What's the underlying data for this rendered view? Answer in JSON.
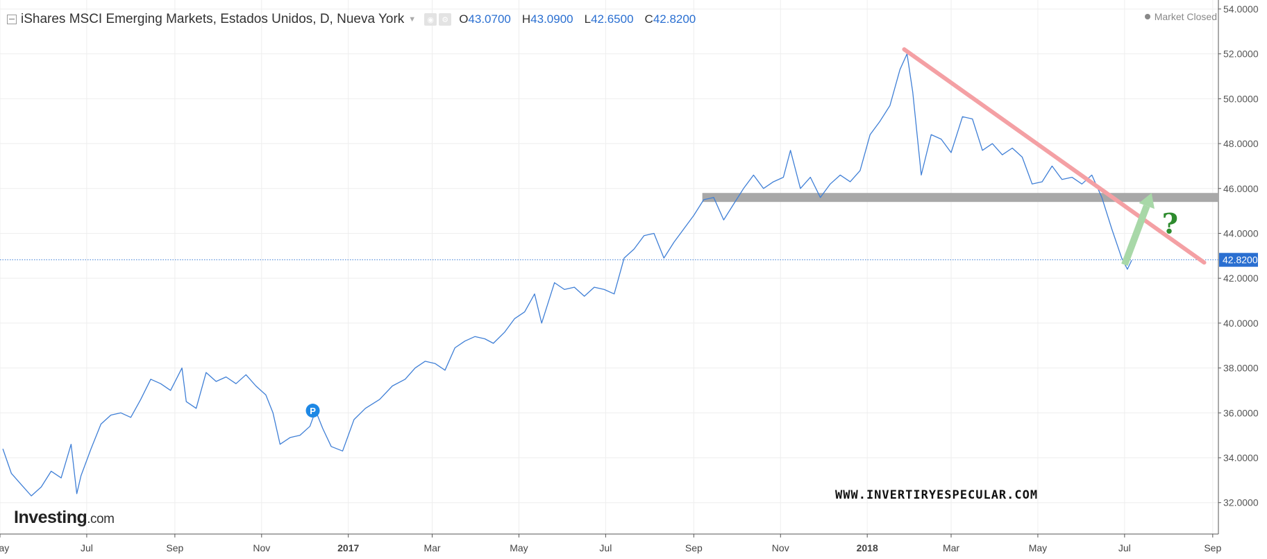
{
  "header": {
    "title": "iShares MSCI Emerging Markets, Estados Unidos, D, Nueva York",
    "ohlc": [
      {
        "key": "O",
        "value": "43.0700"
      },
      {
        "key": "H",
        "value": "43.0900"
      },
      {
        "key": "L",
        "value": "42.6500"
      },
      {
        "key": "C",
        "value": "42.8200"
      }
    ],
    "market_status": "Market Closed"
  },
  "logo": {
    "main": "Investing",
    "suffix": ".com"
  },
  "watermark": "WWW.INVERTIRYESPECULAR.COM",
  "colors": {
    "price_line": "#3f7fd6",
    "grid": "#eeeeee",
    "resistance_trendline": "#f4a0a4",
    "support_band": "#a8a8a8",
    "arrow": "#a8d8a8",
    "question_mark": "#2e8b2e",
    "last_price_label_bg": "#2a6fd1"
  },
  "chart_data": {
    "type": "line",
    "title": "iShares MSCI Emerging Markets, Estados Unidos, D, Nueva York",
    "x_axis": {
      "type": "date",
      "range": [
        "2016-05-01",
        "2018-09-05"
      ],
      "ticks": [
        {
          "date": "2016-05-01",
          "label": "May"
        },
        {
          "date": "2016-07-01",
          "label": "Jul"
        },
        {
          "date": "2016-09-01",
          "label": "Sep"
        },
        {
          "date": "2016-11-01",
          "label": "Nov"
        },
        {
          "date": "2017-01-01",
          "label": "2017",
          "bold": true
        },
        {
          "date": "2017-03-01",
          "label": "Mar"
        },
        {
          "date": "2017-05-01",
          "label": "May"
        },
        {
          "date": "2017-07-01",
          "label": "Jul"
        },
        {
          "date": "2017-09-01",
          "label": "Sep"
        },
        {
          "date": "2017-11-01",
          "label": "Nov"
        },
        {
          "date": "2018-01-01",
          "label": "2018",
          "bold": true
        },
        {
          "date": "2018-03-01",
          "label": "Mar"
        },
        {
          "date": "2018-05-01",
          "label": "May"
        },
        {
          "date": "2018-07-01",
          "label": "Jul"
        },
        {
          "date": "2018-09-01",
          "label": "Sep"
        }
      ]
    },
    "y_axis": {
      "position": "right",
      "range": [
        30.6,
        54.4
      ],
      "ticks": [
        "32.0000",
        "34.0000",
        "36.0000",
        "38.0000",
        "40.0000",
        "42.0000",
        "44.0000",
        "46.0000",
        "48.0000",
        "50.0000",
        "52.0000",
        "54.0000"
      ]
    },
    "grid": true,
    "series": [
      {
        "points": [
          [
            "2016-05-03",
            34.4
          ],
          [
            "2016-05-09",
            33.3
          ],
          [
            "2016-05-16",
            32.8
          ],
          [
            "2016-05-23",
            32.3
          ],
          [
            "2016-05-30",
            32.7
          ],
          [
            "2016-06-06",
            33.4
          ],
          [
            "2016-06-13",
            33.1
          ],
          [
            "2016-06-20",
            34.6
          ],
          [
            "2016-06-24",
            32.4
          ],
          [
            "2016-06-27",
            33.2
          ],
          [
            "2016-07-04",
            34.4
          ],
          [
            "2016-07-11",
            35.5
          ],
          [
            "2016-07-18",
            35.9
          ],
          [
            "2016-07-25",
            36.0
          ],
          [
            "2016-08-01",
            35.8
          ],
          [
            "2016-08-08",
            36.6
          ],
          [
            "2016-08-15",
            37.5
          ],
          [
            "2016-08-22",
            37.3
          ],
          [
            "2016-08-29",
            37.0
          ],
          [
            "2016-09-06",
            38.0
          ],
          [
            "2016-09-09",
            36.5
          ],
          [
            "2016-09-16",
            36.2
          ],
          [
            "2016-09-23",
            37.8
          ],
          [
            "2016-09-30",
            37.4
          ],
          [
            "2016-10-07",
            37.6
          ],
          [
            "2016-10-14",
            37.3
          ],
          [
            "2016-10-21",
            37.7
          ],
          [
            "2016-10-28",
            37.2
          ],
          [
            "2016-11-04",
            36.8
          ],
          [
            "2016-11-09",
            36.0
          ],
          [
            "2016-11-14",
            34.6
          ],
          [
            "2016-11-21",
            34.9
          ],
          [
            "2016-11-28",
            35.0
          ],
          [
            "2016-12-05",
            35.4
          ],
          [
            "2016-12-09",
            36.1
          ],
          [
            "2016-12-14",
            35.3
          ],
          [
            "2016-12-20",
            34.5
          ],
          [
            "2016-12-28",
            34.3
          ],
          [
            "2017-01-05",
            35.7
          ],
          [
            "2017-01-13",
            36.2
          ],
          [
            "2017-01-23",
            36.6
          ],
          [
            "2017-02-01",
            37.2
          ],
          [
            "2017-02-10",
            37.5
          ],
          [
            "2017-02-17",
            38.0
          ],
          [
            "2017-02-24",
            38.3
          ],
          [
            "2017-03-03",
            38.2
          ],
          [
            "2017-03-10",
            37.9
          ],
          [
            "2017-03-17",
            38.9
          ],
          [
            "2017-03-24",
            39.2
          ],
          [
            "2017-03-31",
            39.4
          ],
          [
            "2017-04-07",
            39.3
          ],
          [
            "2017-04-13",
            39.1
          ],
          [
            "2017-04-21",
            39.6
          ],
          [
            "2017-04-28",
            40.2
          ],
          [
            "2017-05-05",
            40.5
          ],
          [
            "2017-05-12",
            41.3
          ],
          [
            "2017-05-17",
            40.0
          ],
          [
            "2017-05-26",
            41.8
          ],
          [
            "2017-06-02",
            41.5
          ],
          [
            "2017-06-09",
            41.6
          ],
          [
            "2017-06-16",
            41.2
          ],
          [
            "2017-06-23",
            41.6
          ],
          [
            "2017-06-30",
            41.5
          ],
          [
            "2017-07-07",
            41.3
          ],
          [
            "2017-07-14",
            42.9
          ],
          [
            "2017-07-21",
            43.3
          ],
          [
            "2017-07-28",
            43.9
          ],
          [
            "2017-08-04",
            44.0
          ],
          [
            "2017-08-11",
            42.9
          ],
          [
            "2017-08-18",
            43.6
          ],
          [
            "2017-08-25",
            44.2
          ],
          [
            "2017-09-01",
            44.8
          ],
          [
            "2017-09-08",
            45.5
          ],
          [
            "2017-09-15",
            45.6
          ],
          [
            "2017-09-22",
            44.6
          ],
          [
            "2017-09-29",
            45.3
          ],
          [
            "2017-10-06",
            46.0
          ],
          [
            "2017-10-13",
            46.6
          ],
          [
            "2017-10-20",
            46.0
          ],
          [
            "2017-10-27",
            46.3
          ],
          [
            "2017-11-03",
            46.5
          ],
          [
            "2017-11-08",
            47.7
          ],
          [
            "2017-11-15",
            46.0
          ],
          [
            "2017-11-22",
            46.5
          ],
          [
            "2017-11-29",
            45.6
          ],
          [
            "2017-12-06",
            46.2
          ],
          [
            "2017-12-13",
            46.6
          ],
          [
            "2017-12-20",
            46.3
          ],
          [
            "2017-12-27",
            46.8
          ],
          [
            "2018-01-03",
            48.4
          ],
          [
            "2018-01-10",
            49.0
          ],
          [
            "2018-01-17",
            49.7
          ],
          [
            "2018-01-24",
            51.3
          ],
          [
            "2018-01-29",
            52.0
          ],
          [
            "2018-02-02",
            50.3
          ],
          [
            "2018-02-08",
            46.6
          ],
          [
            "2018-02-15",
            48.4
          ],
          [
            "2018-02-22",
            48.2
          ],
          [
            "2018-03-01",
            47.6
          ],
          [
            "2018-03-09",
            49.2
          ],
          [
            "2018-03-16",
            49.1
          ],
          [
            "2018-03-23",
            47.7
          ],
          [
            "2018-03-30",
            48.0
          ],
          [
            "2018-04-06",
            47.5
          ],
          [
            "2018-04-13",
            47.8
          ],
          [
            "2018-04-20",
            47.4
          ],
          [
            "2018-04-27",
            46.2
          ],
          [
            "2018-05-04",
            46.3
          ],
          [
            "2018-05-11",
            47.0
          ],
          [
            "2018-05-18",
            46.4
          ],
          [
            "2018-05-25",
            46.5
          ],
          [
            "2018-06-01",
            46.2
          ],
          [
            "2018-06-08",
            46.6
          ],
          [
            "2018-06-15",
            45.6
          ],
          [
            "2018-06-22",
            44.2
          ],
          [
            "2018-06-29",
            42.9
          ],
          [
            "2018-07-03",
            42.4
          ],
          [
            "2018-07-06",
            42.8
          ]
        ]
      }
    ],
    "last_price": {
      "label": "42.8200",
      "value": 42.82
    },
    "annotations": [
      {
        "type": "trendline",
        "color": "resistance",
        "from": [
          "2018-01-27",
          52.2
        ],
        "to": [
          "2018-08-26",
          42.7
        ]
      },
      {
        "type": "horizontal_band",
        "color": "support",
        "from_date": "2017-09-07",
        "to_date": "2018-09-05",
        "low": 45.4,
        "high": 45.8
      },
      {
        "type": "arrow",
        "from": [
          "2018-07-01",
          42.6
        ],
        "to": [
          "2018-07-20",
          45.8
        ]
      },
      {
        "type": "text",
        "text": "?",
        "at": [
          "2018-08-02",
          44.0
        ]
      },
      {
        "type": "marker",
        "text": "P",
        "at": [
          "2016-12-07",
          36.1
        ]
      }
    ]
  }
}
